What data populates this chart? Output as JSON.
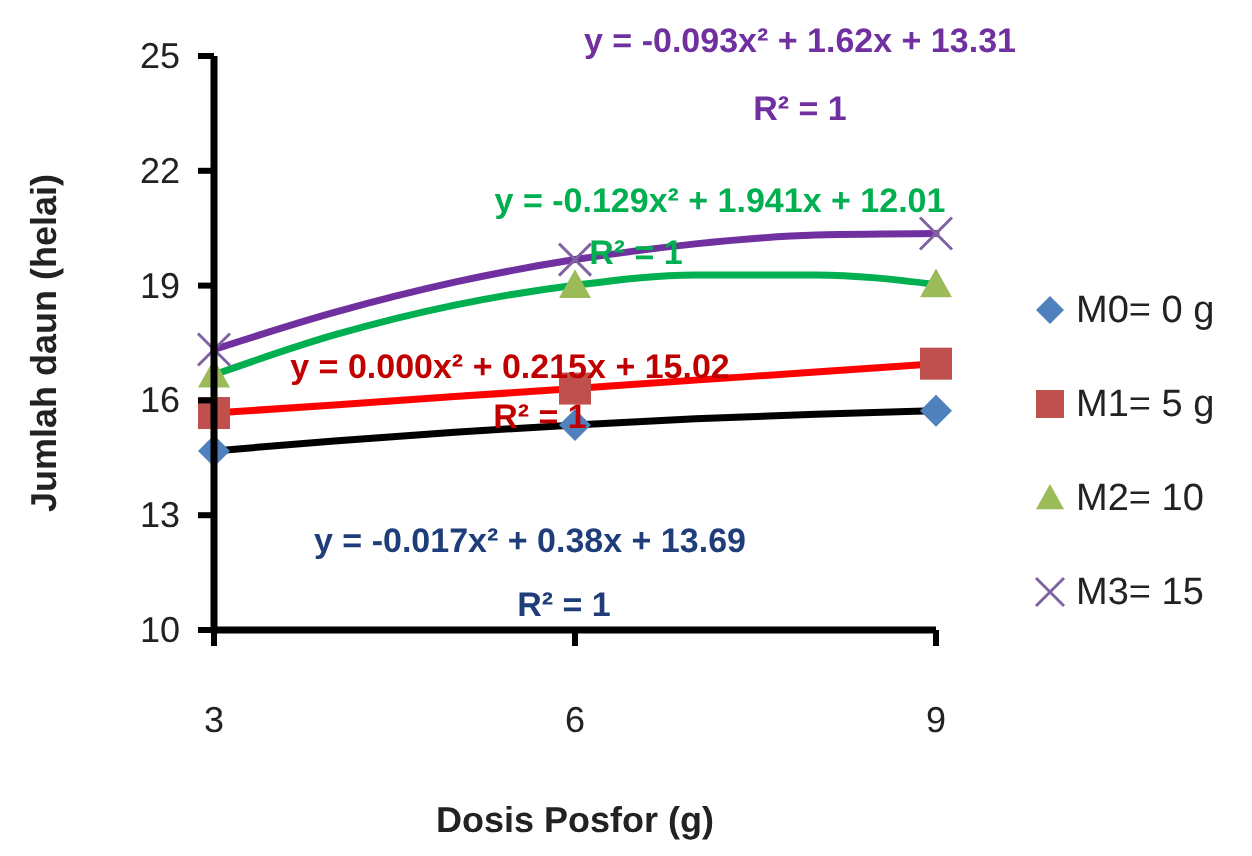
{
  "chart_data": {
    "type": "scatter",
    "xlabel": "Dosis Posfor (g)",
    "ylabel": "Jumlah daun (helai)",
    "xlim": [
      3,
      9
    ],
    "xticks": [
      3,
      6,
      9
    ],
    "ylim": [
      10,
      25
    ],
    "yticks": [
      10,
      13,
      16,
      19,
      22,
      25
    ],
    "grid": false,
    "legend": "right",
    "series": [
      {
        "type": "line",
        "color": "#000000",
        "x": [
          3,
          4,
          5,
          6,
          7,
          8,
          9
        ],
        "values": [
          14.68,
          14.94,
          15.17,
          15.36,
          15.52,
          15.64,
          15.73
        ]
      },
      {
        "type": "line",
        "color": "#ff0000",
        "x": [
          3,
          4,
          5,
          6,
          7,
          8,
          9
        ],
        "values": [
          15.67,
          15.88,
          16.1,
          16.31,
          16.53,
          16.74,
          16.96
        ]
      },
      {
        "type": "line",
        "color": "#00b050",
        "x": [
          3,
          4,
          5,
          6,
          7,
          8,
          9
        ],
        "values": [
          16.67,
          17.71,
          18.49,
          19.01,
          19.28,
          19.28,
          19.03
        ]
      },
      {
        "type": "line",
        "color": "#7030a0",
        "x": [
          3,
          4,
          5,
          6,
          7,
          8,
          9
        ],
        "values": [
          17.33,
          18.3,
          19.09,
          19.68,
          20.09,
          20.32,
          20.36
        ]
      },
      {
        "name": "M0= 0 g",
        "color": "#4f81bd",
        "marker": "diamond",
        "x": [
          3,
          6,
          9
        ],
        "values": [
          14.68,
          15.36,
          15.73
        ]
      },
      {
        "name": "M1= 5 g",
        "color": "#c0504d",
        "marker": "square",
        "x": [
          3,
          6,
          9
        ],
        "values": [
          15.67,
          16.31,
          16.96
        ]
      },
      {
        "name": "M2= 10",
        "color": "#9bbb59",
        "marker": "triangle",
        "x": [
          3,
          6,
          9
        ],
        "values": [
          16.67,
          19.01,
          19.03
        ]
      },
      {
        "name": "M3= 15",
        "color": "#8064a2",
        "marker": "cross",
        "x": [
          3,
          6,
          9
        ],
        "values": [
          17.33,
          19.68,
          20.36
        ]
      }
    ],
    "annotations": [
      "y = -0.093x² + 1.62x + 13.31\nR² = 1",
      "y = -0.129x² + 1.941x + 12.01\nR² = 1",
      "y = 0.000x² + 0.215x + 15.02\nR² = 1",
      "y = -0.017x² + 0.38x + 13.69\nR² = 1"
    ]
  }
}
